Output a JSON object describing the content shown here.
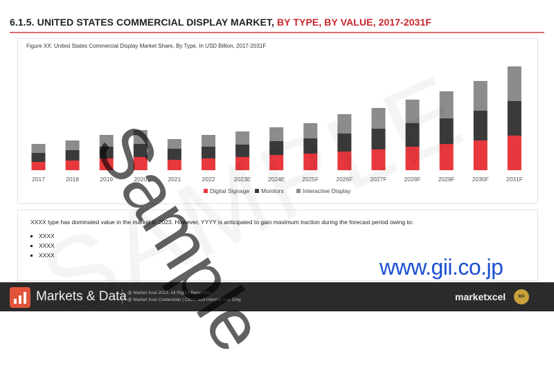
{
  "header": {
    "title_main": "6.1.5. UNITED STATES COMMERCIAL DISPLAY MARKET,",
    "title_sub": " BY TYPE, BY VALUE, 2017-2031F"
  },
  "figure": {
    "caption": "Figure XX: United States Commercial Display Market Share, By Type, In USD Billion, 2017-2031F"
  },
  "colors": {
    "digital_signage": "#e8383d",
    "monitors": "#3a3a3a",
    "interactive": "#8c8c8c",
    "accent": "#c8252c"
  },
  "chart_data": {
    "type": "bar",
    "stacked": true,
    "categories": [
      "2017",
      "2018",
      "2019",
      "2020",
      "2021",
      "2022",
      "2023E",
      "2024E",
      "2025F",
      "2026F",
      "2027F",
      "2028F",
      "2029F",
      "2030F",
      "2031F"
    ],
    "series": [
      {
        "name": "Digital Signage",
        "values": [
          12,
          14,
          17,
          19,
          15,
          17,
          19,
          22,
          24,
          27,
          30,
          34,
          38,
          43,
          50
        ]
      },
      {
        "name": "Monitors",
        "values": [
          13,
          15,
          17,
          19,
          16,
          17,
          18,
          20,
          22,
          26,
          30,
          34,
          37,
          43,
          50
        ]
      },
      {
        "name": "Interactive Display",
        "values": [
          13,
          14,
          17,
          20,
          14,
          17,
          19,
          20,
          22,
          28,
          30,
          34,
          39,
          43,
          50
        ]
      }
    ],
    "ylim": [
      0,
      160
    ],
    "axes_visible": false,
    "grid": false,
    "legend_position": "bottom-center"
  },
  "body": {
    "paragraph": "XXXX type has dominated value in the market in 2023. However, YYYY is anticipated to gain maximum traction during the forecast period owing to:",
    "bullets": [
      "XXXX",
      "XXXX",
      "XXXX"
    ]
  },
  "footer": {
    "brand": "Markets & Data",
    "copyright_1": "@ Market Xcel 2023. All Rights Reserved.",
    "copyright_2": "@ Market Xcel Credentials | Client and Internal Use Only",
    "partner_logo": "marketxcel",
    "badge": "MX"
  },
  "overlay": {
    "watermark": "Sample",
    "background_watermark": "SAMPLE",
    "link": "www.gii.co.jp"
  }
}
